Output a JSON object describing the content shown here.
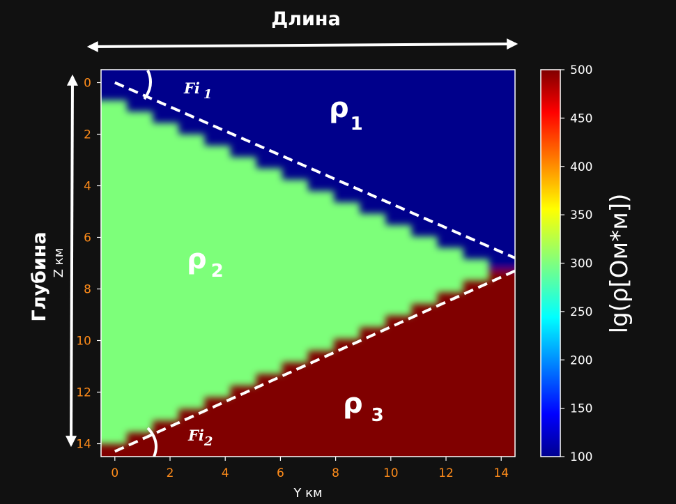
{
  "chart_data": {
    "type": "heatmap",
    "title": "Длина",
    "side_label": "Глубина",
    "xlabel": "Y км",
    "ylabel": "Z км",
    "xlim": [
      -0.5,
      14.5
    ],
    "ylim": [
      14.5,
      -0.5
    ],
    "x_ticks": [
      "0",
      "2",
      "4",
      "6",
      "8",
      "10",
      "12",
      "14"
    ],
    "y_ticks": [
      "0",
      "2",
      "4",
      "6",
      "8",
      "10",
      "12",
      "14"
    ],
    "colorbar": {
      "label": "lg(ρ[Ом*м])",
      "min": 100,
      "max": 500,
      "colormap": "jet",
      "ticks": [
        "100",
        "150",
        "200",
        "250",
        "300",
        "350",
        "400",
        "450",
        "500"
      ]
    },
    "regions": [
      {
        "name": "ρ1",
        "value": 100,
        "color": "#00008b"
      },
      {
        "name": "ρ2",
        "value": 300,
        "color": "#7dff7a"
      },
      {
        "name": "ρ3",
        "value": 500,
        "color": "#800000"
      }
    ],
    "boundaries": [
      {
        "name": "Fi 1",
        "x": [
          0,
          14.5
        ],
        "y": [
          0,
          6.8
        ]
      },
      {
        "name": "Fi2",
        "x": [
          0,
          14.5
        ],
        "y": [
          14.3,
          7.3
        ]
      }
    ],
    "labels": {
      "rho1": "ρ",
      "rho1_sub": "1",
      "rho2": "ρ",
      "rho2_sub": "2",
      "rho3": "ρ",
      "rho3_sub": "3",
      "fi1": "Fi",
      "fi1_sub": "1",
      "fi2": "Fi",
      "fi2_sub": "2"
    }
  }
}
